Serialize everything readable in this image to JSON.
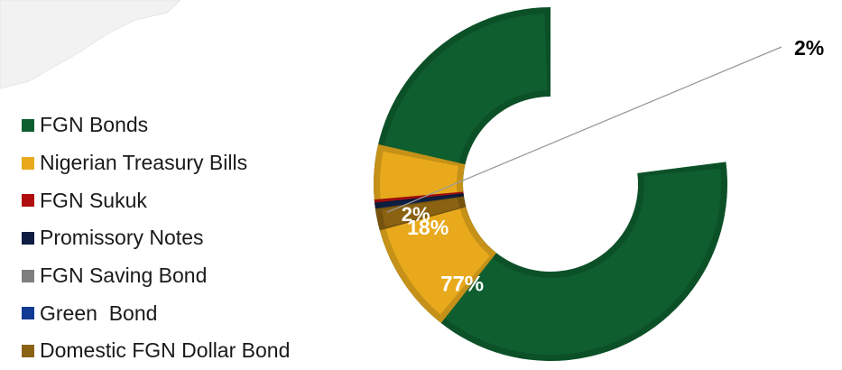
{
  "chart_data": {
    "type": "pie",
    "variant": "donut",
    "legend_position": "left",
    "categories": [
      "FGN Bonds",
      "Nigerian Treasury Bills",
      "FGN Sukuk",
      "Promissory Notes",
      "FGN Saving Bond",
      "Green  Bond",
      "Domestic FGN Dollar Bond"
    ],
    "values": [
      77,
      18,
      1,
      2,
      0,
      0,
      2
    ],
    "data_labels": [
      "77%",
      "18%",
      "",
      "2%",
      "",
      "",
      "2%"
    ],
    "colors": [
      "#0e5e2f",
      "#e8aa1c",
      "#b00e0e",
      "#0d1e42",
      "#7f7f7f",
      "#103a93",
      "#8a6212"
    ]
  }
}
